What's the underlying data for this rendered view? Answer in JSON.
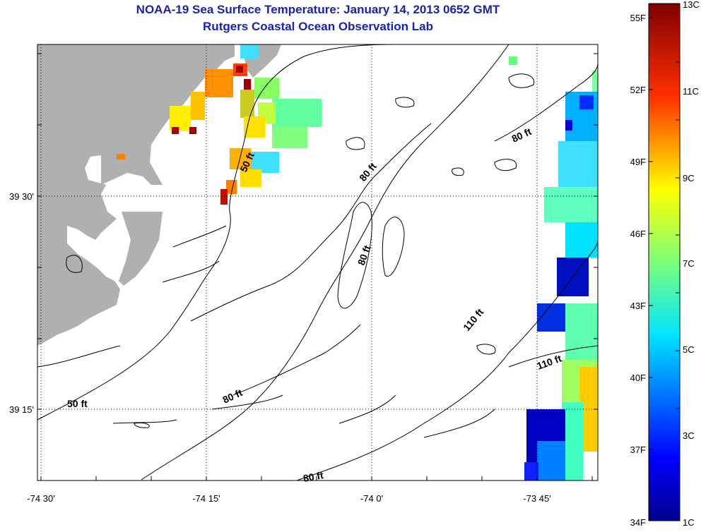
{
  "title": "NOAA-19 Sea Surface Temperature:  January 14, 2013 0652 GMT",
  "subtitle": "Rutgers Coastal Ocean Observation Lab",
  "map": {
    "x_ticks": [
      {
        "value": -74.5,
        "label": "-74 30'"
      },
      {
        "value": -74.25,
        "label": "-74 15'"
      },
      {
        "value": -74.0,
        "label": "-74 0'"
      },
      {
        "value": -73.75,
        "label": "-73 45'"
      }
    ],
    "y_ticks": [
      {
        "value": 39.5,
        "label": "39 30'"
      },
      {
        "value": 39.25,
        "label": "39 15'"
      }
    ],
    "depth_labels": [
      "50 ft",
      "50 ft",
      "80 ft",
      "80 ft",
      "80 ft",
      "80 ft",
      "80 ft",
      "110 ft",
      "110 ft"
    ],
    "colors": {
      "land": "#b0b0b0",
      "contour": "#000000",
      "grid": "#000000"
    }
  },
  "colorbar": {
    "fahrenheit": [
      "55F",
      "52F",
      "49F",
      "46F",
      "43F",
      "40F",
      "37F",
      "34F"
    ],
    "celsius": [
      "13C",
      "11C",
      "9C",
      "7C",
      "5C",
      "3C",
      "1C"
    ]
  }
}
